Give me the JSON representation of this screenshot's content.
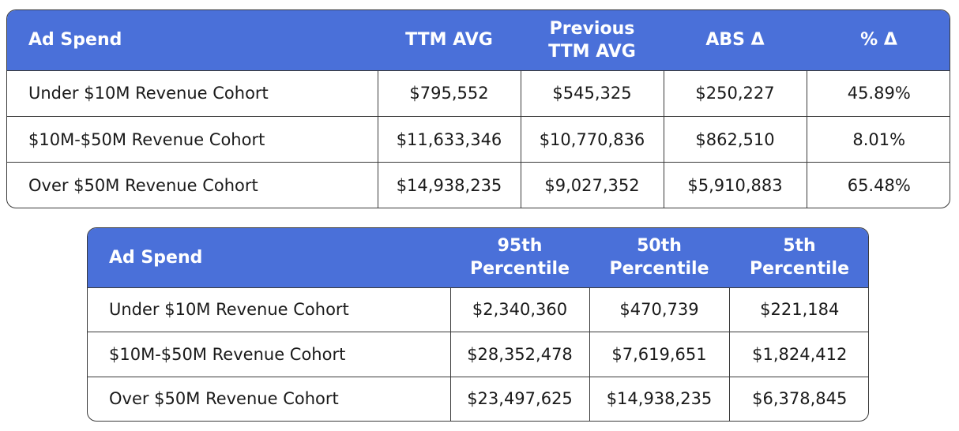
{
  "table1": {
    "headers": [
      "Ad Spend",
      "TTM AVG",
      "Previous\nTTM AVG",
      "ABS Δ",
      "% Δ"
    ],
    "rows": [
      [
        "Under $10M Revenue Cohort",
        "$795,552",
        "$545,325",
        "$250,227",
        "45.89%"
      ],
      [
        "$10M-$50M Revenue Cohort",
        "$11,633,346",
        "$10,770,836",
        "$862,510",
        "8.01%"
      ],
      [
        "Over $50M Revenue Cohort",
        "$14,938,235",
        "$9,027,352",
        "$5,910,883",
        "65.48%"
      ]
    ]
  },
  "table2": {
    "headers": [
      "Ad Spend",
      "95th\nPercentile",
      "50th\nPercentile",
      "5th\nPercentile"
    ],
    "rows": [
      [
        "Under $10M Revenue Cohort",
        "$2,340,360",
        "$470,739",
        "$221,184"
      ],
      [
        "$10M-$50M Revenue Cohort",
        "$28,352,478",
        "$7,619,651",
        "$1,824,412"
      ],
      [
        "Over $50M Revenue Cohort",
        "$23,497,625",
        "$14,938,235",
        "$6,378,845"
      ]
    ]
  },
  "colors": {
    "header_bg": "#4a70d9",
    "header_text": "#ffffff",
    "border": "#3a3a3a"
  }
}
